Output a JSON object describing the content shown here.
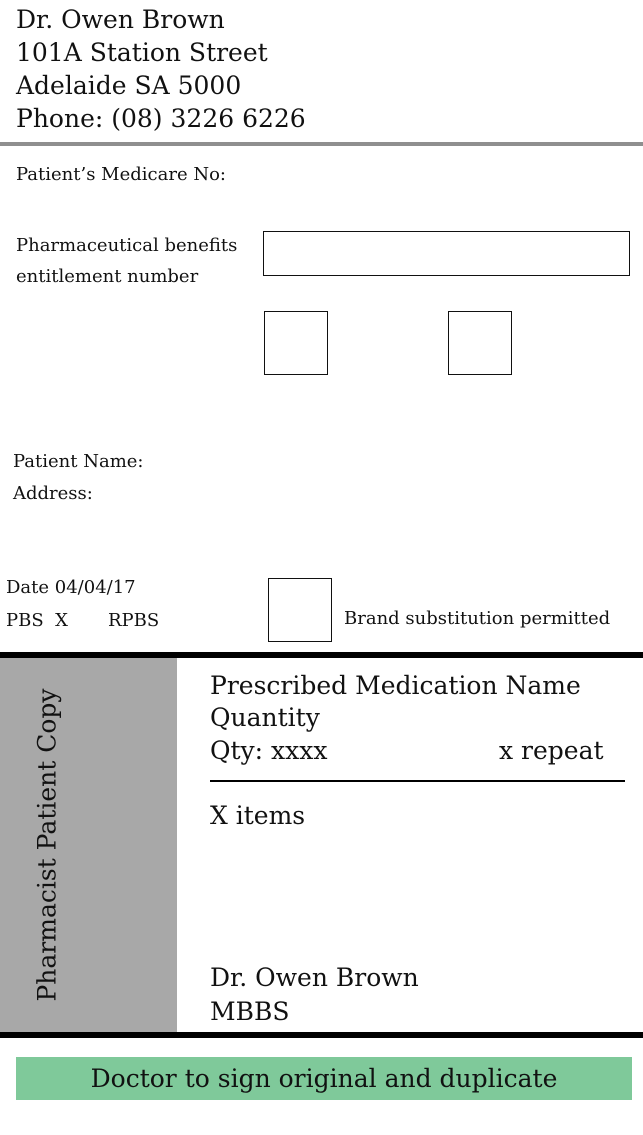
{
  "doctor_header": {
    "name": "Dr. Owen Brown",
    "address_line1": "101A Station Street",
    "address_line2": "Adelaide SA 5000",
    "phone": "Phone: (08) 3226 6226"
  },
  "fields": {
    "medicare_label": "Patient’s Medicare No:",
    "pbs_entitlement_label_line1": "Pharmaceutical benefits",
    "pbs_entitlement_label_line2": "entitlement number",
    "pbs_entitlement_value": "",
    "patient_name_label": "Patient Name:",
    "address_label": "Address:"
  },
  "script_meta": {
    "date": "Date 04/04/17",
    "pbs": "PBS  X",
    "rpbs": "RPBS",
    "brand_substitution": "Brand substitution permitted"
  },
  "prescription": {
    "copy_label": "Pharmacist Patient Copy",
    "medication_name": "Prescribed Medication Name",
    "quantity_label": "Quantity",
    "qty": "Qty: xxxx",
    "repeat": "x repeat",
    "items": "X items",
    "signature_name": "Dr. Owen Brown",
    "qualification": "MBBS"
  },
  "footer": {
    "note": "Doctor to sign original and duplicate"
  },
  "colors": {
    "header_rule": "#8f8f8f",
    "side_panel": "#a8a8a8",
    "footer_bar": "#7fc99a"
  }
}
